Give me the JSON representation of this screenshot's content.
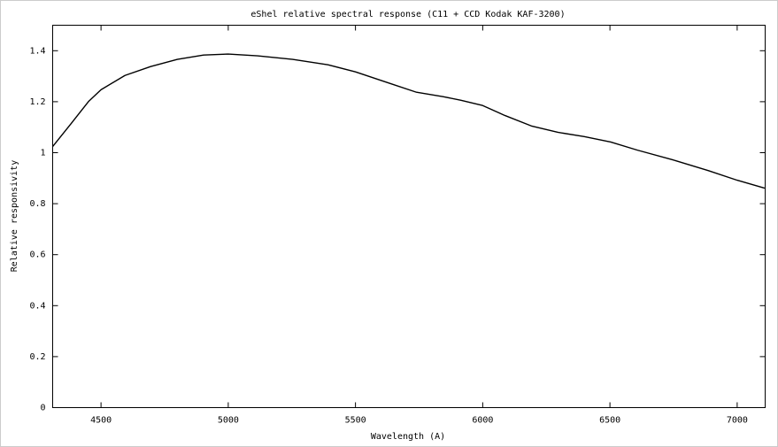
{
  "chart_data": {
    "type": "line",
    "title": "eShel relative spectral response (C11 + CCD Kodak KAF-3200)",
    "x_label": "Wavelength (A)",
    "y_label": "Relative responsivity",
    "x": [
      4310,
      4383,
      4452,
      4500,
      4594,
      4695,
      4800,
      4903,
      5000,
      5115,
      5253,
      5392,
      5500,
      5635,
      5740,
      5844,
      5913,
      6000,
      6087,
      6191,
      6295,
      6399,
      6503,
      6608,
      6747,
      6886,
      7000,
      7108
    ],
    "values": [
      1.024,
      1.115,
      1.202,
      1.247,
      1.303,
      1.338,
      1.366,
      1.383,
      1.387,
      1.38,
      1.366,
      1.345,
      1.317,
      1.272,
      1.237,
      1.22,
      1.206,
      1.185,
      1.146,
      1.105,
      1.08,
      1.063,
      1.042,
      1.01,
      0.972,
      0.93,
      0.892,
      0.861
    ],
    "color": "#000000",
    "xlim": [
      4310,
      7110
    ],
    "ylim": [
      0,
      1.5
    ],
    "xticks": [
      4500,
      5000,
      5500,
      6000,
      6500,
      7000
    ],
    "yticks": [
      0,
      0.2,
      0.4,
      0.6,
      0.8,
      1,
      1.2,
      1.4
    ],
    "grid": false
  }
}
